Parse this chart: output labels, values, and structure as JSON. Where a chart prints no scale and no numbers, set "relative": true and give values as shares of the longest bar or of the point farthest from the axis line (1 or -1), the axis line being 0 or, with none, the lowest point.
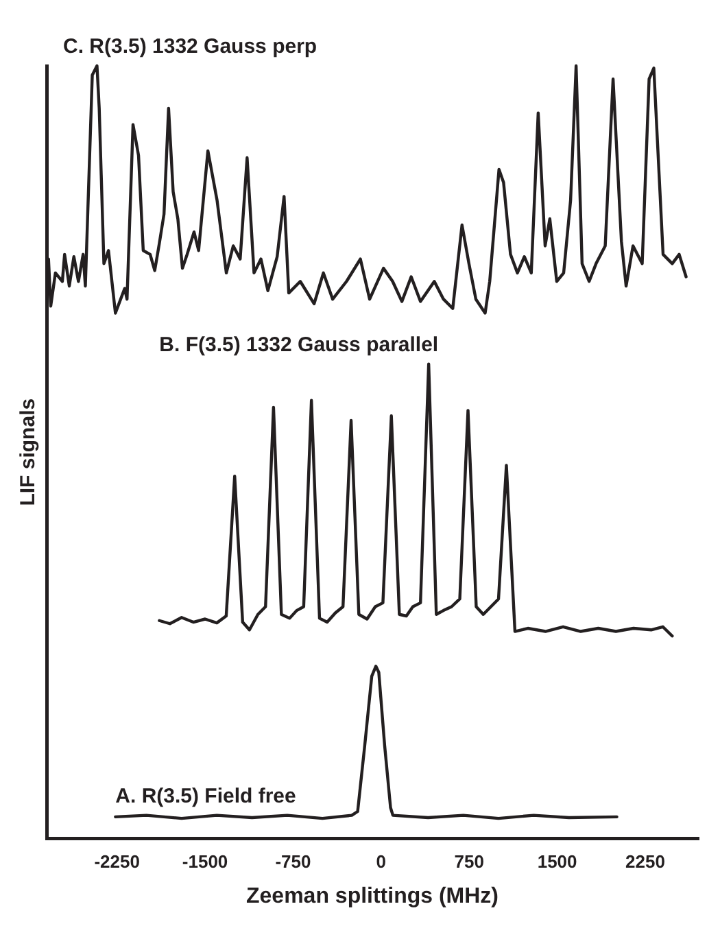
{
  "chart_data": {
    "type": "line",
    "relative": true,
    "xlabel": "Zeeman splittings (MHz)",
    "ylabel": "LIF signals",
    "xlim": [
      -2850,
      2700
    ],
    "xticks": [
      -2250,
      -1500,
      -750,
      0,
      750,
      1500,
      2250
    ],
    "grid": false,
    "legend": false,
    "marker": "none",
    "line_style": "solid",
    "series": [
      {
        "name": "C. R(3.5) 1332 Gauss perp",
        "color": "#231f20",
        "x": [
          -2834,
          -2815,
          -2775,
          -2716,
          -2697,
          -2657,
          -2618,
          -2579,
          -2539,
          -2520,
          -2500,
          -2461,
          -2421,
          -2402,
          -2362,
          -2323,
          -2264,
          -2185,
          -2165,
          -2114,
          -2067,
          -2027,
          -1968,
          -1929,
          -1890,
          -1850,
          -1811,
          -1772,
          -1732,
          -1693,
          -1653,
          -1594,
          -1555,
          -1476,
          -1398,
          -1319,
          -1260,
          -1201,
          -1142,
          -1083,
          -1024,
          -965,
          -886,
          -827,
          -787,
          -689,
          -571,
          -492,
          -413,
          -295,
          -177,
          -98,
          20,
          98,
          177,
          256,
          335,
          453,
          531,
          610,
          689,
          748,
          807,
          886,
          925,
          1004,
          1043,
          1102,
          1161,
          1220,
          1279,
          1338,
          1397,
          1437,
          1496,
          1555,
          1614,
          1661,
          1712,
          1772,
          1831,
          1909,
          1976,
          2047,
          2087,
          2146,
          2224,
          2283,
          2323,
          2402,
          2480,
          2539,
          2598
        ],
        "values": [
          0.75,
          0.689,
          0.732,
          0.721,
          0.756,
          0.715,
          0.753,
          0.721,
          0.756,
          0.715,
          0.808,
          0.988,
          1.0,
          0.945,
          0.744,
          0.761,
          0.68,
          0.712,
          0.698,
          0.924,
          0.884,
          0.761,
          0.756,
          0.735,
          0.77,
          0.808,
          0.945,
          0.837,
          0.802,
          0.738,
          0.756,
          0.785,
          0.761,
          0.89,
          0.826,
          0.732,
          0.767,
          0.75,
          0.881,
          0.732,
          0.75,
          0.709,
          0.753,
          0.831,
          0.706,
          0.721,
          0.692,
          0.732,
          0.698,
          0.721,
          0.75,
          0.698,
          0.738,
          0.721,
          0.695,
          0.727,
          0.695,
          0.721,
          0.698,
          0.686,
          0.794,
          0.744,
          0.698,
          0.68,
          0.721,
          0.866,
          0.849,
          0.756,
          0.732,
          0.753,
          0.732,
          0.939,
          0.767,
          0.802,
          0.721,
          0.732,
          0.826,
          1.0,
          0.744,
          0.721,
          0.744,
          0.767,
          0.983,
          0.773,
          0.715,
          0.767,
          0.744,
          0.983,
          0.997,
          0.756,
          0.744,
          0.756,
          0.727
        ]
      },
      {
        "name": "B. F(3.5) 1332 Gauss parallel",
        "color": "#231f20",
        "x": [
          -1890,
          -1800,
          -1700,
          -1600,
          -1500,
          -1400,
          -1320,
          -1248,
          -1180,
          -1122,
          -1050,
          -985,
          -917,
          -850,
          -780,
          -720,
          -660,
          -594,
          -525,
          -460,
          -390,
          -325,
          -256,
          -190,
          -120,
          -50,
          15,
          87,
          155,
          215,
          270,
          335,
          405,
          470,
          530,
          600,
          670,
          740,
          810,
          870,
          935,
          1000,
          1067,
          1140,
          1250,
          1400,
          1550,
          1700,
          1850,
          2000,
          2150,
          2300,
          2400,
          2480
        ],
        "values": [
          0.282,
          0.278,
          0.286,
          0.28,
          0.284,
          0.279,
          0.288,
          0.469,
          0.28,
          0.27,
          0.29,
          0.3,
          0.558,
          0.29,
          0.285,
          0.295,
          0.3,
          0.567,
          0.285,
          0.28,
          0.292,
          0.3,
          0.541,
          0.29,
          0.284,
          0.3,
          0.305,
          0.547,
          0.29,
          0.288,
          0.3,
          0.305,
          0.614,
          0.29,
          0.295,
          0.3,
          0.31,
          0.554,
          0.3,
          0.29,
          0.3,
          0.31,
          0.483,
          0.268,
          0.272,
          0.268,
          0.274,
          0.268,
          0.272,
          0.268,
          0.272,
          0.27,
          0.274,
          0.262
        ]
      },
      {
        "name": "A. R(3.5) Field free",
        "color": "#231f20",
        "x": [
          -2264,
          -2000,
          -1700,
          -1400,
          -1100,
          -800,
          -500,
          -250,
          -200,
          -140,
          -80,
          -45,
          -20,
          30,
          80,
          100,
          400,
          700,
          1000,
          1300,
          1600,
          2008
        ],
        "values": [
          0.028,
          0.03,
          0.026,
          0.03,
          0.027,
          0.03,
          0.026,
          0.03,
          0.035,
          0.12,
          0.21,
          0.223,
          0.215,
          0.12,
          0.04,
          0.03,
          0.027,
          0.03,
          0.026,
          0.03,
          0.027,
          0.028
        ]
      }
    ]
  }
}
